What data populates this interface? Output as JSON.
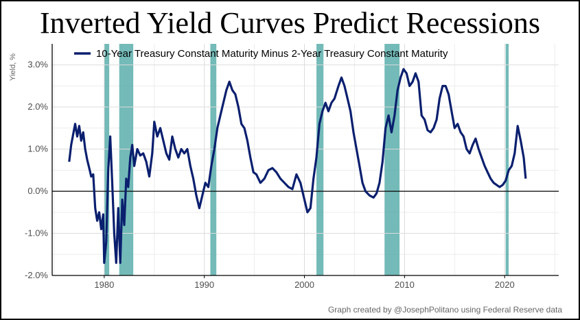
{
  "title": "Inverted Yield Curves Predict Recessions",
  "credit": "Graph created by @JosephPolitano using Federal Reserve data",
  "chart_data": {
    "type": "line",
    "ylabel": "Yield, %",
    "xlabel": "",
    "xlim": [
      1974.8,
      2025.4
    ],
    "ylim": [
      -2.0,
      3.5
    ],
    "x_ticks": [
      1980,
      1990,
      2000,
      2010,
      2020
    ],
    "y_ticks": [
      -2.0,
      -1.0,
      0.0,
      1.0,
      2.0,
      3.0
    ],
    "y_tick_labels": [
      "-2.0%",
      "-1.0%",
      "0.0%",
      "1.0%",
      "2.0%",
      "3.0%"
    ],
    "zero_line": 0.0,
    "legend": {
      "position": "top",
      "entries": [
        "10-Year Treasury Constant Maturity Minus 2-Year Treasury Constant Maturity"
      ]
    },
    "colors": {
      "line": "#0a1f6e",
      "recession": "#5aaeac",
      "grid": "#dcdcdc",
      "zero": "#000000"
    },
    "recessions": [
      [
        1980.0,
        1980.5
      ],
      [
        1981.5,
        1982.9
      ],
      [
        1990.6,
        1991.2
      ],
      [
        2001.2,
        2001.9
      ],
      [
        2008.0,
        2009.5
      ],
      [
        2020.1,
        2020.4
      ]
    ],
    "series": [
      {
        "name": "10-Year Treasury Constant Maturity Minus 2-Year Treasury Constant Maturity",
        "points": [
          [
            1976.5,
            0.7
          ],
          [
            1976.7,
            1.1
          ],
          [
            1976.9,
            1.35
          ],
          [
            1977.1,
            1.6
          ],
          [
            1977.3,
            1.3
          ],
          [
            1977.5,
            1.55
          ],
          [
            1977.7,
            1.2
          ],
          [
            1977.9,
            1.4
          ],
          [
            1978.1,
            1.0
          ],
          [
            1978.3,
            0.75
          ],
          [
            1978.5,
            0.55
          ],
          [
            1978.7,
            0.35
          ],
          [
            1978.9,
            0.4
          ],
          [
            1979.1,
            -0.4
          ],
          [
            1979.3,
            -0.7
          ],
          [
            1979.5,
            -0.5
          ],
          [
            1979.7,
            -0.9
          ],
          [
            1979.9,
            -0.55
          ],
          [
            1980.0,
            -1.7
          ],
          [
            1980.2,
            -1.2
          ],
          [
            1980.4,
            0.5
          ],
          [
            1980.6,
            1.3
          ],
          [
            1980.8,
            0.2
          ],
          [
            1981.0,
            -1.0
          ],
          [
            1981.2,
            -1.7
          ],
          [
            1981.4,
            -0.4
          ],
          [
            1981.6,
            -1.7
          ],
          [
            1981.8,
            -0.2
          ],
          [
            1982.0,
            -0.8
          ],
          [
            1982.2,
            0.3
          ],
          [
            1982.4,
            0.1
          ],
          [
            1982.6,
            0.8
          ],
          [
            1982.8,
            1.1
          ],
          [
            1983.0,
            0.6
          ],
          [
            1983.3,
            1.0
          ],
          [
            1983.6,
            0.85
          ],
          [
            1983.9,
            0.9
          ],
          [
            1984.2,
            0.7
          ],
          [
            1984.5,
            0.35
          ],
          [
            1984.8,
            0.9
          ],
          [
            1985.0,
            1.65
          ],
          [
            1985.3,
            1.3
          ],
          [
            1985.6,
            1.5
          ],
          [
            1985.9,
            1.2
          ],
          [
            1986.2,
            0.9
          ],
          [
            1986.5,
            0.75
          ],
          [
            1986.8,
            1.3
          ],
          [
            1987.1,
            1.0
          ],
          [
            1987.4,
            0.8
          ],
          [
            1987.7,
            1.0
          ],
          [
            1988.0,
            0.9
          ],
          [
            1988.3,
            1.0
          ],
          [
            1988.6,
            0.6
          ],
          [
            1988.9,
            0.3
          ],
          [
            1989.2,
            -0.1
          ],
          [
            1989.5,
            -0.4
          ],
          [
            1989.8,
            -0.1
          ],
          [
            1990.1,
            0.2
          ],
          [
            1990.4,
            0.1
          ],
          [
            1990.7,
            0.6
          ],
          [
            1991.0,
            1.0
          ],
          [
            1991.3,
            1.5
          ],
          [
            1991.6,
            1.8
          ],
          [
            1991.9,
            2.1
          ],
          [
            1992.2,
            2.4
          ],
          [
            1992.5,
            2.6
          ],
          [
            1992.8,
            2.4
          ],
          [
            1993.1,
            2.3
          ],
          [
            1993.4,
            2.0
          ],
          [
            1993.7,
            1.6
          ],
          [
            1994.0,
            1.5
          ],
          [
            1994.3,
            1.2
          ],
          [
            1994.6,
            0.8
          ],
          [
            1994.9,
            0.45
          ],
          [
            1995.2,
            0.4
          ],
          [
            1995.6,
            0.2
          ],
          [
            1996.0,
            0.3
          ],
          [
            1996.4,
            0.5
          ],
          [
            1996.8,
            0.55
          ],
          [
            1997.2,
            0.45
          ],
          [
            1997.6,
            0.3
          ],
          [
            1998.0,
            0.2
          ],
          [
            1998.4,
            0.1
          ],
          [
            1998.8,
            0.05
          ],
          [
            1999.2,
            0.4
          ],
          [
            1999.6,
            0.2
          ],
          [
            2000.0,
            -0.2
          ],
          [
            2000.3,
            -0.5
          ],
          [
            2000.6,
            -0.4
          ],
          [
            2000.9,
            0.3
          ],
          [
            2001.2,
            0.8
          ],
          [
            2001.5,
            1.6
          ],
          [
            2001.8,
            1.9
          ],
          [
            2002.1,
            2.1
          ],
          [
            2002.4,
            1.9
          ],
          [
            2002.7,
            2.1
          ],
          [
            2003.0,
            2.2
          ],
          [
            2003.4,
            2.5
          ],
          [
            2003.7,
            2.7
          ],
          [
            2004.0,
            2.5
          ],
          [
            2004.3,
            2.2
          ],
          [
            2004.6,
            1.9
          ],
          [
            2004.9,
            1.4
          ],
          [
            2005.2,
            1.0
          ],
          [
            2005.5,
            0.6
          ],
          [
            2005.8,
            0.2
          ],
          [
            2006.1,
            0.0
          ],
          [
            2006.5,
            -0.1
          ],
          [
            2006.9,
            -0.15
          ],
          [
            2007.2,
            -0.05
          ],
          [
            2007.5,
            0.2
          ],
          [
            2007.8,
            0.7
          ],
          [
            2008.1,
            1.5
          ],
          [
            2008.4,
            1.8
          ],
          [
            2008.7,
            1.4
          ],
          [
            2009.0,
            1.8
          ],
          [
            2009.3,
            2.4
          ],
          [
            2009.6,
            2.7
          ],
          [
            2009.9,
            2.9
          ],
          [
            2010.2,
            2.8
          ],
          [
            2010.5,
            2.5
          ],
          [
            2010.8,
            2.6
          ],
          [
            2011.1,
            2.8
          ],
          [
            2011.4,
            2.6
          ],
          [
            2011.7,
            1.8
          ],
          [
            2012.0,
            1.7
          ],
          [
            2012.3,
            1.45
          ],
          [
            2012.6,
            1.4
          ],
          [
            2012.9,
            1.5
          ],
          [
            2013.2,
            1.7
          ],
          [
            2013.5,
            2.2
          ],
          [
            2013.8,
            2.5
          ],
          [
            2014.1,
            2.5
          ],
          [
            2014.4,
            2.3
          ],
          [
            2014.7,
            1.9
          ],
          [
            2015.0,
            1.5
          ],
          [
            2015.3,
            1.6
          ],
          [
            2015.6,
            1.4
          ],
          [
            2015.9,
            1.3
          ],
          [
            2016.2,
            1.0
          ],
          [
            2016.5,
            0.9
          ],
          [
            2016.8,
            1.1
          ],
          [
            2017.1,
            1.25
          ],
          [
            2017.4,
            1.0
          ],
          [
            2017.7,
            0.8
          ],
          [
            2018.0,
            0.6
          ],
          [
            2018.3,
            0.45
          ],
          [
            2018.6,
            0.3
          ],
          [
            2018.9,
            0.2
          ],
          [
            2019.2,
            0.15
          ],
          [
            2019.5,
            0.1
          ],
          [
            2019.8,
            0.15
          ],
          [
            2020.1,
            0.25
          ],
          [
            2020.4,
            0.5
          ],
          [
            2020.7,
            0.6
          ],
          [
            2021.0,
            0.9
          ],
          [
            2021.3,
            1.55
          ],
          [
            2021.6,
            1.2
          ],
          [
            2021.9,
            0.8
          ],
          [
            2022.1,
            0.3
          ]
        ]
      }
    ]
  }
}
